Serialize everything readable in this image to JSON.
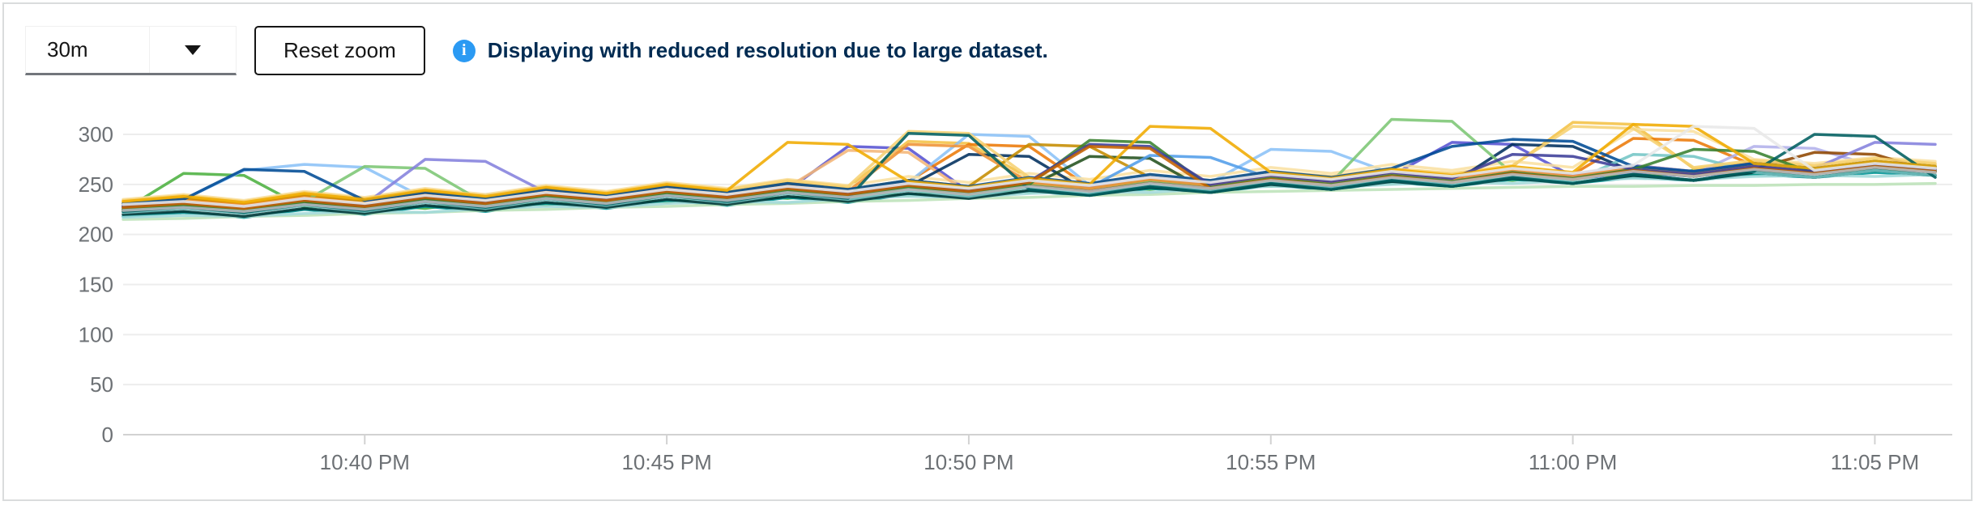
{
  "toolbar": {
    "timespan_dropdown": {
      "value": "30m",
      "caret_icon": "caret-down-icon"
    },
    "reset_zoom_label": "Reset zoom",
    "alert": {
      "icon": "info-icon",
      "icon_glyph": "i",
      "icon_color": "#2b9af3",
      "text": "Displaying with reduced resolution due to large dataset.",
      "text_color": "#002b52"
    }
  },
  "chart_data": {
    "type": "line",
    "title": "",
    "xlabel": "",
    "ylabel": "",
    "legend": "none",
    "grid": "horizontal",
    "x_axis": {
      "unit": "time",
      "window": "30m",
      "start_minute": 0,
      "end_minute": 30,
      "tick_minutes": [
        4,
        9,
        14,
        19,
        24,
        29
      ],
      "tick_labels": [
        "10:40 PM",
        "10:45 PM",
        "10:50 PM",
        "10:55 PM",
        "11:00 PM",
        "11:05 PM"
      ]
    },
    "y_axis": {
      "min": 0,
      "max": 300,
      "tick_values": [
        0,
        50,
        100,
        150,
        200,
        250,
        300
      ],
      "tick_labels": [
        "0",
        "50",
        "100",
        "150",
        "200",
        "250",
        "300"
      ]
    },
    "point_interval_minutes": 1,
    "series": [
      {
        "color": "#0066CC",
        "values": [
          229,
          233,
          227,
          235,
          230,
          238,
          232,
          240,
          235,
          242,
          237,
          245,
          240,
          247,
          243,
          250,
          245,
          252,
          248,
          255,
          250,
          257,
          253,
          260,
          255,
          262,
          258,
          264,
          261,
          266,
          263
        ]
      },
      {
        "color": "#4CB140",
        "values": [
          224,
          261,
          259,
          227,
          231,
          226,
          234,
          229,
          237,
          232,
          240,
          236,
          243,
          239,
          246,
          242,
          249,
          245,
          252,
          248,
          255,
          251,
          258,
          254,
          261,
          257,
          264,
          260,
          266,
          263,
          268
        ]
      },
      {
        "color": "#009596",
        "values": [
          218,
          222,
          217,
          225,
          220,
          228,
          223,
          231,
          226,
          234,
          229,
          237,
          232,
          240,
          236,
          243,
          239,
          246,
          242,
          249,
          245,
          252,
          248,
          255,
          251,
          257,
          254,
          260,
          257,
          262,
          259
        ]
      },
      {
        "color": "#5752D1",
        "values": [
          227,
          231,
          226,
          233,
          229,
          236,
          231,
          239,
          234,
          242,
          237,
          244,
          288,
          286,
          243,
          250,
          246,
          253,
          249,
          256,
          252,
          259,
          292,
          290,
          258,
          264,
          261,
          267,
          263,
          269,
          265
        ]
      },
      {
        "color": "#F4C145",
        "values": [
          233,
          238,
          231,
          241,
          235,
          244,
          238,
          247,
          241,
          250,
          244,
          253,
          247,
          293,
          291,
          256,
          250,
          259,
          253,
          262,
          257,
          265,
          260,
          268,
          312,
          310,
          266,
          272,
          268,
          274,
          270
        ]
      },
      {
        "color": "#EC7A08",
        "values": [
          230,
          235,
          229,
          238,
          232,
          241,
          235,
          244,
          238,
          247,
          241,
          250,
          244,
          253,
          290,
          288,
          247,
          256,
          250,
          259,
          254,
          262,
          257,
          265,
          260,
          296,
          294,
          269,
          264,
          271,
          266
        ]
      },
      {
        "color": "#8BC1F7",
        "values": [
          231,
          235,
          264,
          270,
          267,
          236,
          240,
          244,
          237,
          246,
          240,
          249,
          243,
          252,
          300,
          298,
          249,
          258,
          252,
          285,
          283,
          261,
          256,
          264,
          259,
          267,
          262,
          269,
          265,
          271,
          267
        ]
      },
      {
        "color": "#BDE2B9",
        "values": [
          215,
          216,
          218,
          219,
          221,
          222,
          224,
          225,
          227,
          228,
          230,
          231,
          233,
          234,
          236,
          237,
          239,
          240,
          242,
          243,
          244,
          245,
          246,
          247,
          248,
          248,
          249,
          249,
          250,
          250,
          251
        ]
      },
      {
        "color": "#A2D9D9",
        "values": [
          217,
          219,
          218,
          221,
          223,
          222,
          226,
          228,
          227,
          231,
          233,
          232,
          236,
          238,
          237,
          241,
          243,
          242,
          246,
          248,
          247,
          250,
          252,
          251,
          254,
          256,
          255,
          258,
          259,
          258,
          260
        ]
      },
      {
        "color": "#B2B0EA",
        "values": [
          226,
          229,
          224,
          232,
          227,
          235,
          230,
          238,
          233,
          241,
          236,
          244,
          239,
          247,
          242,
          250,
          245,
          253,
          248,
          256,
          251,
          259,
          254,
          262,
          257,
          265,
          260,
          288,
          286,
          268,
          264
        ]
      },
      {
        "color": "#F9E0A2",
        "values": [
          235,
          240,
          234,
          243,
          237,
          246,
          240,
          249,
          243,
          252,
          246,
          255,
          249,
          258,
          252,
          261,
          255,
          264,
          258,
          267,
          261,
          270,
          264,
          273,
          267,
          305,
          303,
          275,
          271,
          277,
          273
        ]
      },
      {
        "color": "#F4B678",
        "values": [
          228,
          232,
          226,
          235,
          229,
          238,
          232,
          241,
          235,
          244,
          238,
          247,
          284,
          282,
          241,
          250,
          244,
          253,
          247,
          256,
          250,
          259,
          253,
          262,
          256,
          265,
          259,
          267,
          262,
          269,
          264
        ]
      },
      {
        "color": "#002F5D",
        "values": [
          227,
          230,
          225,
          233,
          228,
          236,
          230,
          239,
          233,
          242,
          236,
          245,
          239,
          248,
          280,
          278,
          242,
          251,
          245,
          254,
          248,
          257,
          251,
          290,
          288,
          263,
          258,
          266,
          261,
          268,
          263
        ]
      },
      {
        "color": "#23511E",
        "values": [
          223,
          227,
          222,
          230,
          224,
          233,
          227,
          236,
          230,
          239,
          233,
          242,
          236,
          245,
          239,
          248,
          278,
          276,
          242,
          251,
          245,
          254,
          248,
          257,
          251,
          260,
          254,
          263,
          257,
          265,
          259
        ]
      },
      {
        "color": "#003737",
        "values": [
          220,
          223,
          218,
          226,
          221,
          229,
          224,
          232,
          227,
          235,
          230,
          238,
          233,
          241,
          236,
          244,
          239,
          247,
          242,
          250,
          245,
          253,
          248,
          256,
          251,
          259,
          254,
          262,
          257,
          264,
          259
        ]
      },
      {
        "color": "#2A265F",
        "values": [
          225,
          228,
          223,
          231,
          226,
          234,
          229,
          237,
          232,
          240,
          235,
          243,
          238,
          246,
          241,
          249,
          244,
          252,
          247,
          255,
          250,
          258,
          253,
          261,
          256,
          264,
          259,
          266,
          261,
          268,
          263
        ]
      },
      {
        "color": "#C58C00",
        "values": [
          231,
          236,
          230,
          239,
          233,
          242,
          236,
          245,
          239,
          248,
          242,
          251,
          245,
          254,
          248,
          290,
          288,
          257,
          251,
          260,
          254,
          263,
          257,
          266,
          260,
          269,
          263,
          271,
          266,
          273,
          268
        ]
      },
      {
        "color": "#8F4700",
        "values": [
          224,
          228,
          223,
          231,
          225,
          234,
          228,
          237,
          231,
          240,
          234,
          243,
          237,
          246,
          240,
          249,
          243,
          252,
          246,
          255,
          249,
          258,
          252,
          261,
          255,
          264,
          258,
          266,
          282,
          280,
          262
        ]
      },
      {
        "color": "#519DE9",
        "values": [
          228,
          232,
          227,
          235,
          229,
          238,
          232,
          241,
          235,
          244,
          238,
          247,
          241,
          250,
          244,
          253,
          247,
          279,
          277,
          256,
          250,
          259,
          253,
          262,
          256,
          265,
          259,
          267,
          262,
          269,
          264
        ]
      },
      {
        "color": "#7CC674",
        "values": [
          226,
          230,
          225,
          233,
          268,
          266,
          231,
          239,
          234,
          242,
          237,
          245,
          240,
          248,
          243,
          251,
          246,
          254,
          249,
          257,
          252,
          315,
          313,
          261,
          256,
          264,
          259,
          267,
          262,
          269,
          264
        ]
      },
      {
        "color": "#73C5C5",
        "values": [
          222,
          226,
          221,
          229,
          223,
          232,
          226,
          235,
          229,
          238,
          232,
          241,
          235,
          244,
          238,
          247,
          241,
          250,
          244,
          253,
          247,
          256,
          250,
          259,
          253,
          280,
          278,
          262,
          257,
          264,
          259
        ]
      },
      {
        "color": "#8481DD",
        "values": [
          229,
          233,
          228,
          236,
          230,
          275,
          273,
          242,
          236,
          245,
          239,
          248,
          242,
          251,
          245,
          254,
          248,
          257,
          251,
          260,
          254,
          263,
          257,
          266,
          260,
          269,
          263,
          271,
          266,
          292,
          290
        ]
      },
      {
        "color": "#F6D173",
        "values": [
          234,
          239,
          233,
          242,
          236,
          245,
          239,
          248,
          242,
          251,
          245,
          254,
          248,
          303,
          301,
          257,
          251,
          260,
          254,
          263,
          258,
          266,
          261,
          269,
          308,
          306,
          267,
          274,
          269,
          276,
          271
        ]
      },
      {
        "color": "#EF9234",
        "values": [
          230,
          234,
          229,
          237,
          231,
          240,
          234,
          243,
          237,
          246,
          240,
          249,
          243,
          290,
          288,
          252,
          246,
          255,
          249,
          258,
          252,
          261,
          255,
          264,
          258,
          267,
          261,
          269,
          264,
          271,
          266
        ]
      },
      {
        "color": "#004B95",
        "values": [
          231,
          235,
          265,
          263,
          234,
          242,
          236,
          245,
          239,
          248,
          242,
          251,
          245,
          254,
          248,
          257,
          251,
          260,
          254,
          263,
          257,
          266,
          288,
          295,
          293,
          268,
          263,
          271,
          266,
          273,
          268
        ]
      },
      {
        "color": "#38812F",
        "values": [
          225,
          229,
          224,
          232,
          226,
          235,
          229,
          238,
          232,
          241,
          235,
          244,
          238,
          247,
          241,
          250,
          294,
          292,
          247,
          256,
          250,
          259,
          253,
          262,
          256,
          265,
          285,
          283,
          261,
          268,
          263
        ]
      },
      {
        "color": "#005F60",
        "values": [
          223,
          227,
          222,
          230,
          224,
          233,
          227,
          236,
          230,
          239,
          233,
          242,
          236,
          301,
          299,
          245,
          239,
          248,
          242,
          251,
          245,
          254,
          248,
          257,
          251,
          260,
          254,
          263,
          300,
          298,
          257
        ]
      },
      {
        "color": "#3C3D99",
        "values": [
          228,
          232,
          227,
          235,
          229,
          238,
          232,
          241,
          235,
          244,
          238,
          247,
          241,
          250,
          244,
          253,
          290,
          288,
          250,
          259,
          253,
          262,
          256,
          280,
          278,
          265,
          260,
          268,
          263,
          270,
          265
        ]
      },
      {
        "color": "#F0AB00",
        "values": [
          233,
          238,
          232,
          241,
          235,
          244,
          238,
          247,
          241,
          250,
          244,
          292,
          290,
          253,
          247,
          256,
          250,
          308,
          306,
          262,
          256,
          265,
          259,
          268,
          262,
          310,
          308,
          271,
          266,
          273,
          268
        ]
      },
      {
        "color": "#C46100",
        "values": [
          227,
          231,
          226,
          234,
          228,
          237,
          231,
          240,
          234,
          243,
          237,
          246,
          240,
          249,
          243,
          252,
          288,
          286,
          246,
          255,
          249,
          258,
          252,
          261,
          255,
          264,
          258,
          266,
          261,
          268,
          263
        ]
      },
      {
        "color": "#B8BBBE",
        "values": [
          224,
          227,
          223,
          230,
          225,
          233,
          228,
          236,
          231,
          239,
          234,
          242,
          237,
          245,
          240,
          248,
          243,
          251,
          246,
          254,
          249,
          257,
          252,
          260,
          255,
          263,
          258,
          265,
          260,
          267,
          262
        ]
      },
      {
        "color": "#E8E8E8",
        "values": [
          230,
          233,
          228,
          236,
          231,
          239,
          234,
          242,
          237,
          245,
          240,
          248,
          243,
          251,
          246,
          254,
          249,
          257,
          252,
          260,
          255,
          263,
          258,
          266,
          261,
          269,
          308,
          306,
          264,
          271,
          266
        ]
      }
    ]
  }
}
